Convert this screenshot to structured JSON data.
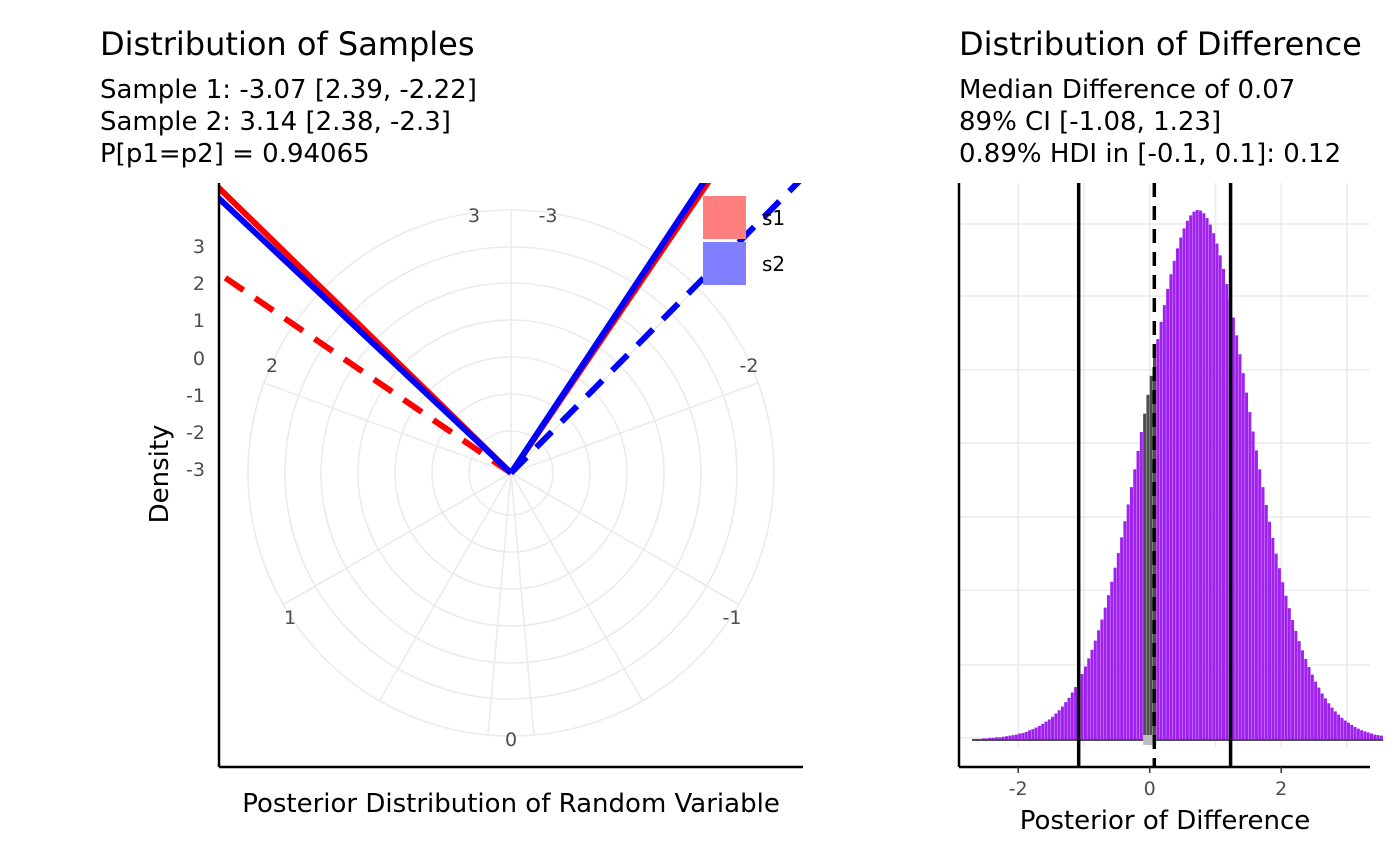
{
  "left": {
    "title": "Distribution of Samples",
    "subtitle_lines": [
      "Sample 1:  -3.07 [2.39, -2.22]",
      "Sample 2:  3.14 [2.38, -2.3]",
      "P[p1=p2] = 0.94065"
    ],
    "ylabel": "Density",
    "xlabel": "Posterior Distribution of Random Variable",
    "y_ticks": [
      "3",
      "2",
      "1",
      "0",
      "-1",
      "-2",
      "-3"
    ],
    "theta_labels": [
      "3",
      "-3",
      "2",
      "-2",
      "1",
      "-1",
      "0"
    ],
    "legend": [
      {
        "label": "s1",
        "color": "#ff7f7f"
      },
      {
        "label": "s2",
        "color": "#7f7fff"
      }
    ]
  },
  "right": {
    "title": "Distribution of Difference",
    "subtitle_lines": [
      "Median Difference of 0.07",
      "89% CI [-1.08, 1.23]",
      "0.89% HDI in [-0.1, 0.1]: 0.12"
    ],
    "xlabel": "Posterior of Difference",
    "x_ticks": [
      "-2",
      "0",
      "2"
    ]
  },
  "chart_data": [
    {
      "type": "line",
      "coord": "polar",
      "title": "Distribution of Samples",
      "xlabel": "Posterior Distribution of Random Variable",
      "ylabel": "Density",
      "grid": true,
      "legend_position": "top-right",
      "series": [
        {
          "name": "s1",
          "color": "#ff0000",
          "line": "solid",
          "median_angle": -3.07
        },
        {
          "name": "s1",
          "color": "#ff0000",
          "line": "dashed",
          "ci_bound": 2.39
        },
        {
          "name": "s2",
          "color": "#0000ff",
          "line": "solid",
          "median_angle": 3.14
        },
        {
          "name": "s2",
          "color": "#0000ff",
          "line": "dashed",
          "ci_bound": -2.3
        }
      ]
    },
    {
      "type": "bar",
      "title": "Distribution of Difference",
      "xlabel": "Posterior of Difference",
      "xlim": [
        -2.9,
        3.35
      ],
      "grid": true,
      "bar_color": "#a020f0",
      "rope_bar_color": "#4d4d4d",
      "median": 0.07,
      "ci": [
        -1.08,
        1.23
      ],
      "rope": [
        -0.1,
        0.1
      ],
      "histogram": {
        "start": -2.7,
        "bin_width": 0.05,
        "counts": [
          0.2,
          0.2,
          0.2,
          0.3,
          0.3,
          0.4,
          0.4,
          0.5,
          0.5,
          0.6,
          0.7,
          0.8,
          0.9,
          1,
          1.2,
          1.3,
          1.5,
          1.8,
          2,
          2.3,
          2.6,
          3,
          3.4,
          3.8,
          4.3,
          4.9,
          5.5,
          6.2,
          7,
          7.8,
          8.8,
          9.8,
          11,
          12.2,
          13.6,
          15.1,
          16.7,
          18.4,
          20.3,
          22.3,
          24.5,
          26.8,
          29.3,
          31.9,
          34.6,
          37.5,
          40.5,
          43.6,
          46.8,
          50.1,
          53.5,
          57,
          60.4,
          63.9,
          67.4,
          70.8,
          74.2,
          77.4,
          80.5,
          83.5,
          86.2,
          88.7,
          91,
          93,
          94.7,
          96.1,
          97.1,
          97.8,
          98.1,
          98,
          97.5,
          96.6,
          95.4,
          93.8,
          91.9,
          89.7,
          87.2,
          84.4,
          81.4,
          78.2,
          74.9,
          71.4,
          67.9,
          64.3,
          60.7,
          57.1,
          53.6,
          50.1,
          46.8,
          43.5,
          40.4,
          37.4,
          34.5,
          31.8,
          29.2,
          26.7,
          24.4,
          22.2,
          20.2,
          18.3,
          16.6,
          15,
          13.5,
          12.1,
          10.8,
          9.7,
          8.6,
          7.7,
          6.8,
          6,
          5.3,
          4.7,
          4.1,
          3.6,
          3.2,
          2.8,
          2.4,
          2.1,
          1.8,
          1.6,
          1.4,
          1.2,
          1,
          0.9,
          0.8
        ]
      }
    }
  ]
}
